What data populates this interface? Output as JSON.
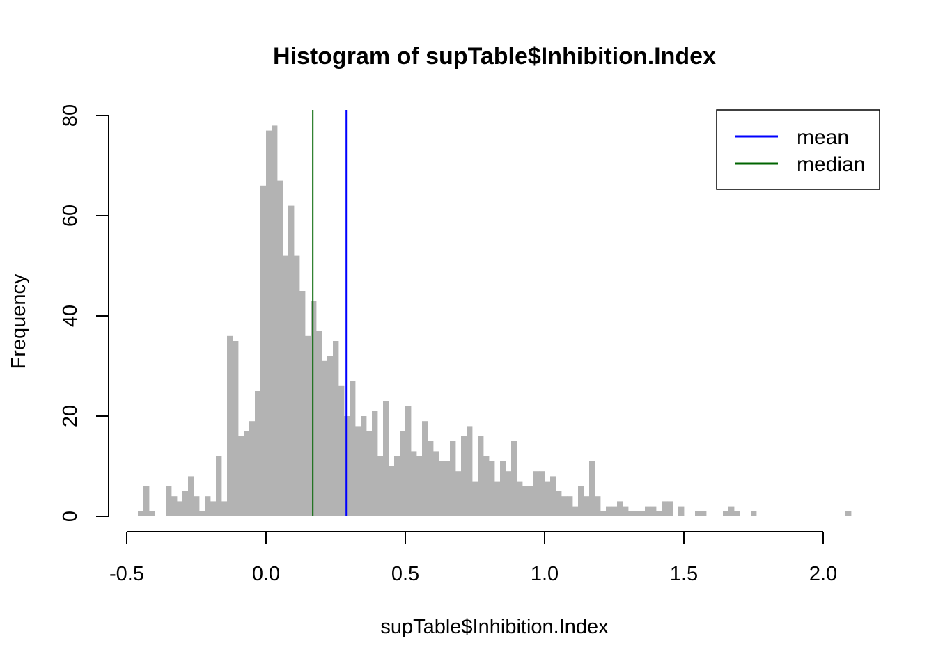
{
  "chart_data": {
    "type": "bar",
    "title": "Histogram of supTable$Inhibition.Index",
    "xlabel": "supTable$Inhibition.Index",
    "ylabel": "Frequency",
    "xlim": [
      -0.5,
      2.1
    ],
    "ylim": [
      0,
      80
    ],
    "x_ticks": [
      -0.5,
      0.0,
      0.5,
      1.0,
      1.5,
      2.0
    ],
    "x_tick_labels": [
      "-0.5",
      "0.0",
      "0.5",
      "1.0",
      "1.5",
      "2.0"
    ],
    "y_ticks": [
      0,
      20,
      40,
      60,
      80
    ],
    "y_tick_labels": [
      "0",
      "20",
      "40",
      "60",
      "80"
    ],
    "bin_start": -0.46,
    "bin_width": 0.02,
    "bar_color": "#b3b3b3",
    "values": [
      1,
      6,
      1,
      0,
      0,
      6,
      4,
      3,
      5,
      8,
      4,
      1,
      4,
      3,
      12,
      3,
      36,
      35,
      16,
      17,
      19,
      25,
      66,
      77,
      78,
      67,
      52,
      62,
      52,
      45,
      36,
      43,
      37,
      31,
      32,
      35,
      26,
      20,
      27,
      18,
      20,
      17,
      21,
      12,
      23,
      10,
      12,
      17,
      22,
      13,
      12,
      19,
      15,
      13,
      11,
      11,
      15,
      9,
      16,
      18,
      7,
      16,
      12,
      11,
      7,
      11,
      9,
      15,
      7,
      6,
      6,
      9,
      9,
      7,
      8,
      5,
      4,
      4,
      2,
      6,
      4,
      11,
      4,
      1,
      2,
      2,
      3,
      2,
      1,
      1,
      1,
      2,
      2,
      1,
      3,
      3,
      0,
      2,
      0,
      0,
      1,
      1,
      0,
      0,
      0,
      1,
      2,
      1,
      0,
      0,
      1,
      0,
      0,
      0,
      0,
      0,
      0,
      0,
      0,
      0,
      0,
      0,
      0,
      0,
      0,
      0,
      0,
      1
    ],
    "reference_lines": [
      {
        "name": "mean",
        "x": 0.288,
        "color": "#0000ff"
      },
      {
        "name": "median",
        "x": 0.168,
        "color": "#006400"
      }
    ],
    "legend": {
      "position": "top-right",
      "entries": [
        {
          "label": "mean",
          "color": "#0000ff"
        },
        {
          "label": "median",
          "color": "#006400"
        }
      ]
    }
  }
}
